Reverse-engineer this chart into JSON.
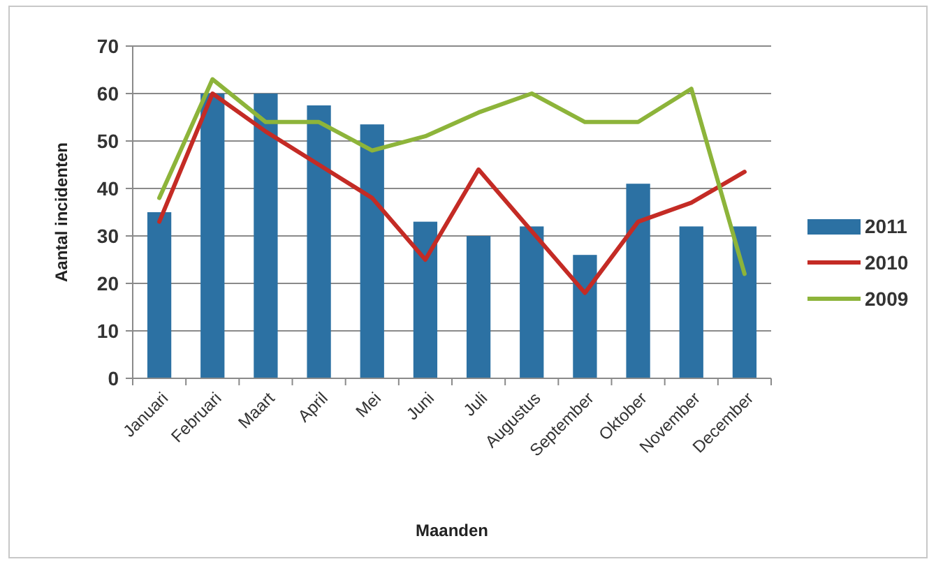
{
  "chart_data": {
    "type": "bar",
    "xlabel": "Maanden",
    "ylabel": "Aantal incidenten",
    "categories": [
      "Januari",
      "Februari",
      "Maart",
      "April",
      "Mei",
      "Juni",
      "Juli",
      "Augustus",
      "September",
      "Oktober",
      "November",
      "December"
    ],
    "series": [
      {
        "name": "2011",
        "color": "#2c71a3",
        "values": [
          35,
          60,
          60,
          57.5,
          53.5,
          33,
          30,
          32,
          26,
          41,
          32,
          32
        ]
      },
      {
        "name": "2010",
        "type": "line",
        "color": "#c42b25",
        "values": [
          33,
          60,
          52,
          45,
          38,
          25,
          44,
          31,
          18,
          33,
          37,
          43.5
        ]
      },
      {
        "name": "2009",
        "type": "line",
        "color": "#8db43a",
        "values": [
          38,
          63,
          54,
          54,
          48,
          51,
          56,
          60,
          54,
          54,
          61,
          22
        ]
      }
    ],
    "ylim": [
      0,
      70
    ],
    "yticks": [
      0,
      10,
      20,
      30,
      40,
      50,
      60,
      70
    ],
    "grid": "y",
    "legend": "right"
  }
}
